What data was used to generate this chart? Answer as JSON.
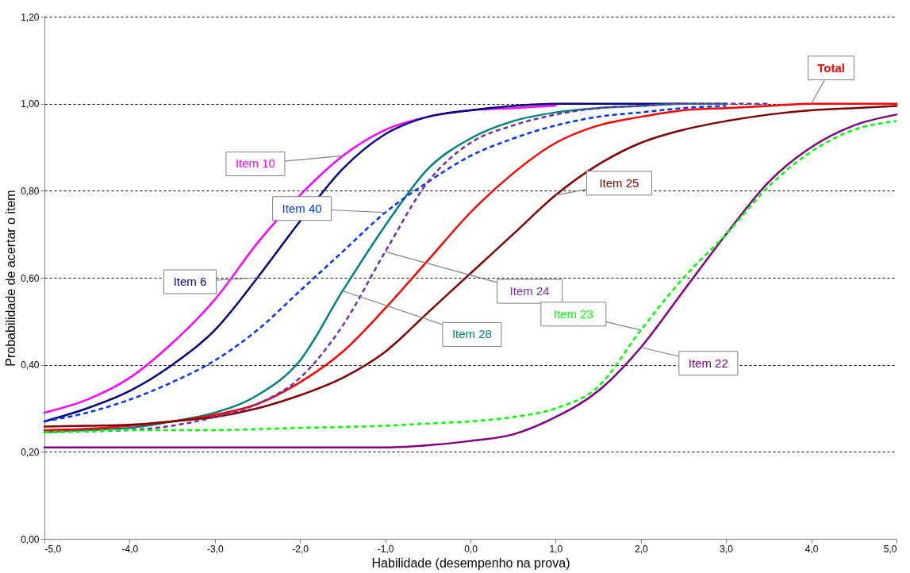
{
  "chart_data": {
    "type": "line",
    "xlabel": "Habilidade (desempenho na prova)",
    "ylabel": "Probabilidade de acertar o item",
    "x": [
      -5,
      -4.5,
      -4,
      -3.5,
      -3,
      -2.5,
      -2,
      -1.5,
      -1,
      -0.5,
      0,
      0.5,
      1,
      1.5,
      2,
      2.5,
      3,
      3.5,
      4,
      4.5,
      5
    ],
    "xlim": [
      -5,
      5
    ],
    "ylim": [
      0,
      1.2
    ],
    "xticks": [
      {
        "value": -5,
        "label": "-5,0"
      },
      {
        "value": -4,
        "label": "-4,0"
      },
      {
        "value": -3,
        "label": "-3,0"
      },
      {
        "value": -2,
        "label": "-2,0"
      },
      {
        "value": -1,
        "label": "-1,0"
      },
      {
        "value": 0,
        "label": "0,0"
      },
      {
        "value": 1,
        "label": "1,0"
      },
      {
        "value": 2,
        "label": "2,0"
      },
      {
        "value": 3,
        "label": "3,0"
      },
      {
        "value": 4,
        "label": "4,0"
      },
      {
        "value": 5,
        "label": "5,0"
      }
    ],
    "yticks": [
      {
        "value": 0,
        "label": "0,00"
      },
      {
        "value": 0.2,
        "label": "0,20"
      },
      {
        "value": 0.4,
        "label": "0,40"
      },
      {
        "value": 0.6,
        "label": "0,60"
      },
      {
        "value": 0.8,
        "label": "0,80"
      },
      {
        "value": 1,
        "label": "1,00"
      },
      {
        "value": 1.2,
        "label": "1,20"
      }
    ],
    "grid": "y",
    "legend": false,
    "marker": "none",
    "line_style": "solid",
    "series": [
      {
        "name": "Item 10",
        "color": "#ff00ff",
        "values": [
          0.29,
          0.32,
          0.37,
          0.45,
          0.55,
          0.68,
          0.79,
          0.88,
          0.94,
          0.97,
          0.985,
          0.99,
          0.996,
          null,
          null,
          null,
          null,
          null,
          null,
          null,
          null
        ]
      },
      {
        "name": "Item 6",
        "color": "#000080",
        "values": [
          0.27,
          0.3,
          0.34,
          0.4,
          0.48,
          0.6,
          0.73,
          0.85,
          0.93,
          0.97,
          0.985,
          0.995,
          1,
          1,
          1,
          1,
          null,
          null,
          null,
          null,
          null
        ]
      },
      {
        "name": "Item 40",
        "color": "#0033ff",
        "line_style": "dashed",
        "values": [
          0.27,
          0.29,
          0.32,
          0.36,
          0.41,
          0.48,
          0.57,
          0.66,
          0.75,
          0.82,
          0.88,
          0.92,
          0.95,
          0.97,
          0.98,
          0.99,
          0.995,
          null,
          null,
          null,
          null
        ]
      },
      {
        "name": "Item 28",
        "color": "#008080",
        "values": [
          0.245,
          0.25,
          0.255,
          0.27,
          0.29,
          0.33,
          0.41,
          0.57,
          0.72,
          0.85,
          0.92,
          0.96,
          0.98,
          0.99,
          0.995,
          1,
          1,
          null,
          null,
          null,
          null
        ]
      },
      {
        "name": "Item  24",
        "color": "#7030a0",
        "line_style": "dashed",
        "values": [
          0.245,
          0.247,
          0.25,
          0.26,
          0.28,
          0.31,
          0.37,
          0.49,
          0.66,
          0.82,
          0.91,
          0.95,
          0.975,
          0.99,
          0.995,
          1,
          1,
          1,
          null,
          null,
          null
        ]
      },
      {
        "name": "Total",
        "color": "#ff0000",
        "values": [
          0.25,
          0.253,
          0.26,
          0.27,
          0.285,
          0.31,
          0.36,
          0.43,
          0.53,
          0.64,
          0.75,
          0.84,
          0.91,
          0.95,
          0.97,
          0.985,
          0.99,
          0.995,
          1,
          1,
          1
        ]
      },
      {
        "name": "Item  25",
        "color": "#800000",
        "values": [
          0.258,
          0.26,
          0.262,
          0.27,
          0.28,
          0.3,
          0.33,
          0.37,
          0.43,
          0.52,
          0.61,
          0.7,
          0.79,
          0.86,
          0.91,
          0.94,
          0.96,
          0.975,
          0.985,
          0.99,
          0.995
        ]
      },
      {
        "name": "Item  23",
        "color": "#00ff00",
        "line_style": "dashed",
        "values": [
          0.245,
          0.247,
          0.25,
          0.25,
          0.25,
          0.252,
          0.255,
          0.257,
          0.26,
          0.265,
          0.27,
          0.28,
          0.3,
          0.35,
          0.48,
          0.6,
          0.7,
          0.81,
          0.89,
          0.94,
          0.96
        ]
      },
      {
        "name": "Item 22",
        "color": "#800080",
        "values": [
          0.21,
          0.21,
          0.21,
          0.21,
          0.21,
          0.21,
          0.21,
          0.21,
          0.21,
          0.215,
          0.225,
          0.24,
          0.28,
          0.34,
          0.44,
          0.57,
          0.7,
          0.82,
          0.9,
          0.95,
          0.975
        ]
      }
    ]
  }
}
